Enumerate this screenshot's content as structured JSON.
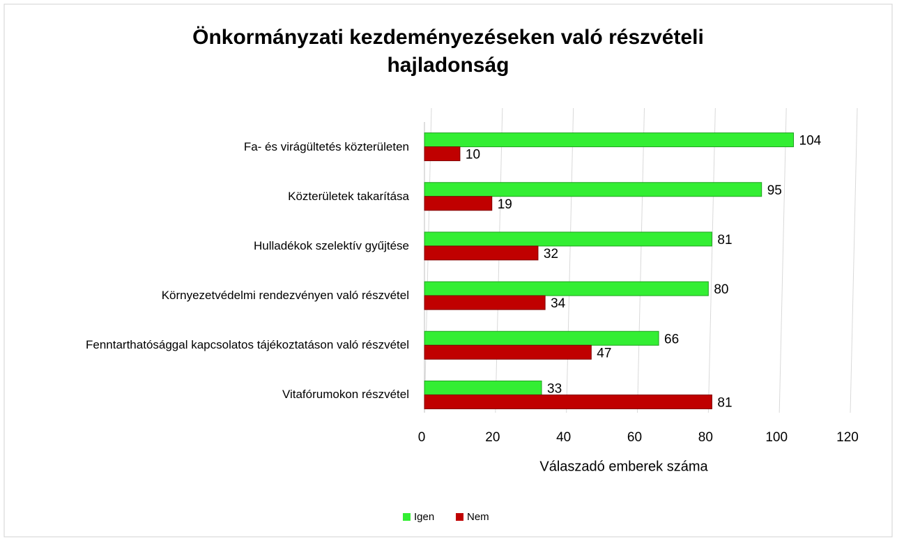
{
  "chart_data": {
    "type": "bar",
    "orientation": "horizontal",
    "title": "Önkormányzati kezdeményezéseken való részvételi hajladonság",
    "x_label": "Válaszadó emberek száma",
    "categories": [
      "Fa- és virágültetés közterületen",
      "Közterületek takarítása",
      "Hulladékok szelektív gyűjtése",
      "Környezetvédelmi rendezvényen való részvétel",
      "Fenntarthatósággal kapcsolatos tájékoztatáson való részvétel",
      "Vitafórumokon részvétel"
    ],
    "series": [
      {
        "name": "Igen",
        "color": "#33ee33",
        "values": [
          104,
          95,
          81,
          80,
          66,
          33
        ]
      },
      {
        "name": "Nem",
        "color": "#c00000",
        "values": [
          10,
          19,
          32,
          34,
          47,
          81
        ]
      }
    ],
    "xlim": [
      0,
      120
    ],
    "xticks": [
      0,
      20,
      40,
      60,
      80,
      100,
      120
    ],
    "grid": true,
    "legend": "bottom"
  }
}
